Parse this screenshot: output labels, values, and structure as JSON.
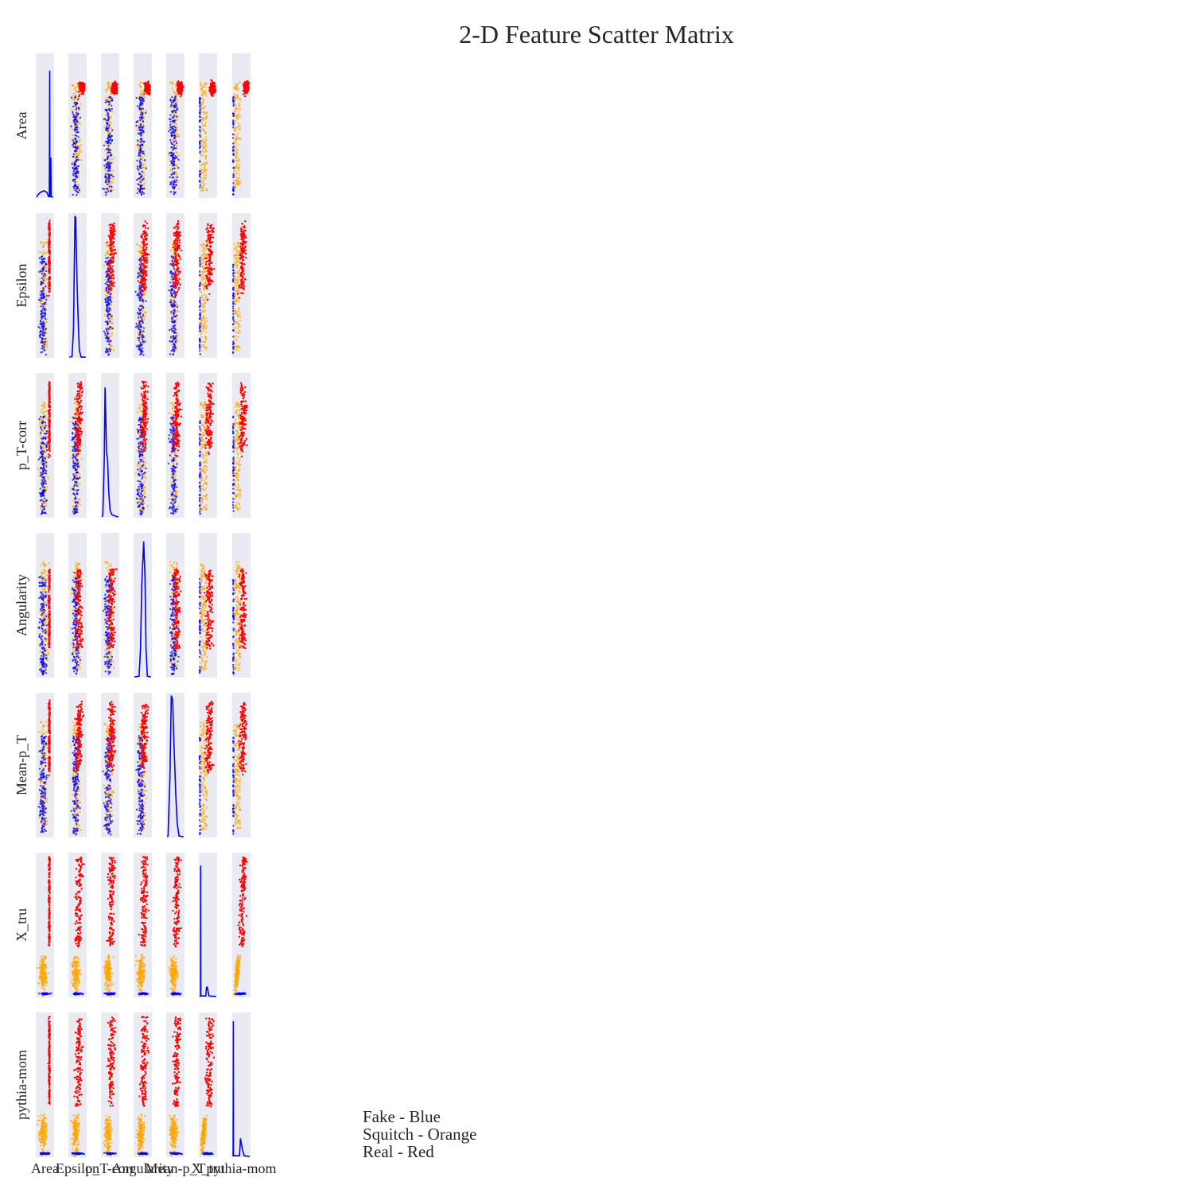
{
  "chart_data": {
    "type": "scatter",
    "title": "2-D Feature Scatter Matrix",
    "features": [
      "Area",
      "Epsilon",
      "p_T-corr",
      "Angularity",
      "Mean-p_T",
      "X_tru",
      "pythia-mom"
    ],
    "diagonal": "histogram",
    "classes": [
      {
        "name": "Fake",
        "color": "#0000ff"
      },
      {
        "name": "Squitch",
        "color": "#ffa500"
      },
      {
        "name": "Real",
        "color": "#ff0000"
      }
    ],
    "legend_lines": [
      "Fake - Blue",
      "Squitch - Orange",
      "Real - Red"
    ],
    "legend_position": "bottom-center",
    "panel_background": "#eaeaf2",
    "grid": false
  }
}
